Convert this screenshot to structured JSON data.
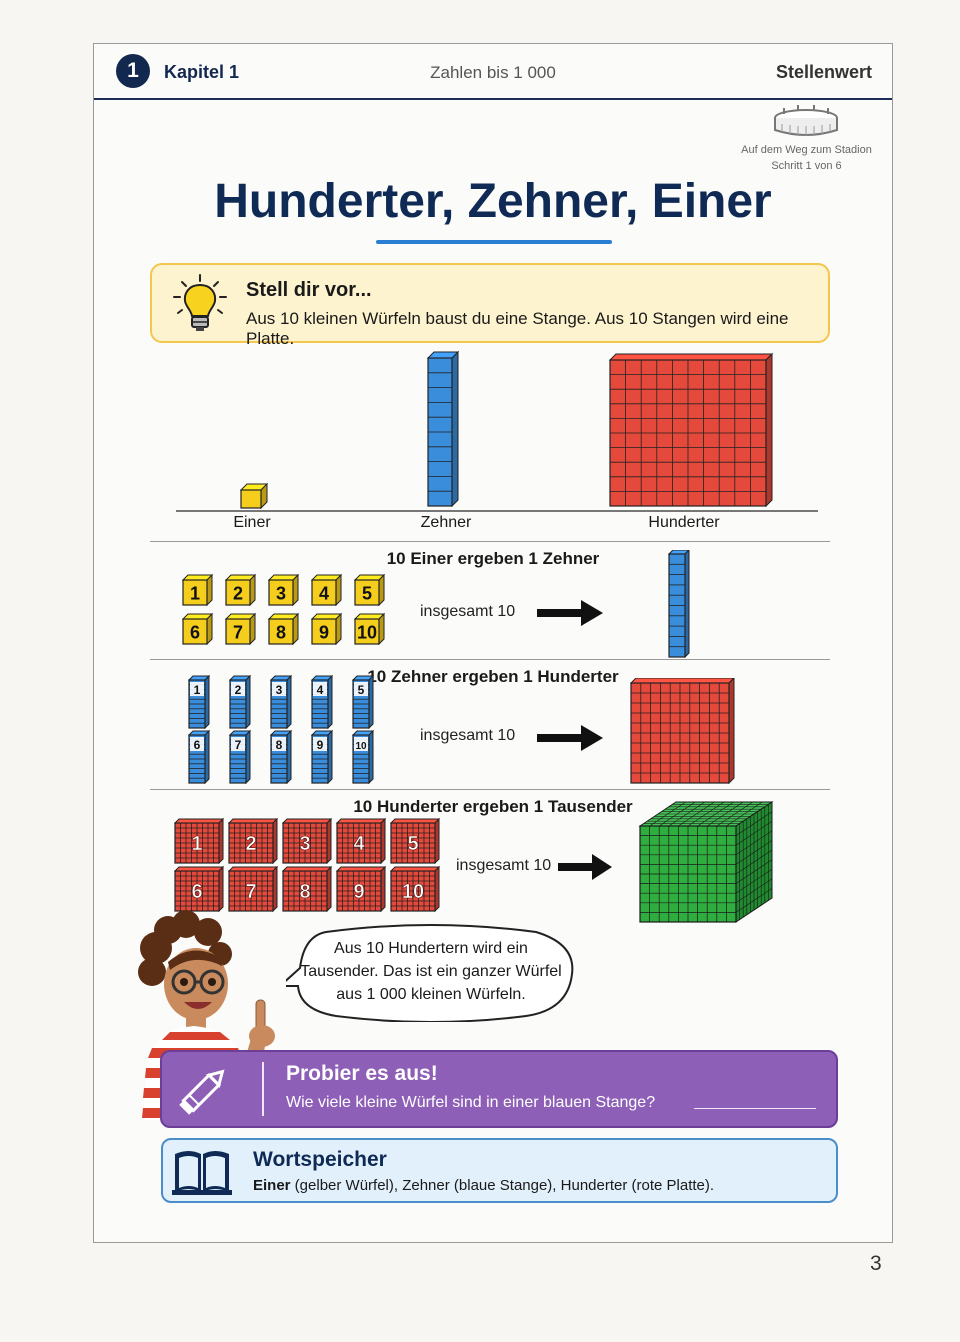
{
  "header": {
    "chapter_number": "1",
    "chapter_label": "Kapitel 1",
    "topic": "Zahlen bis 1 000",
    "section": "Stellenwert"
  },
  "progress": {
    "line1": "Auf dem Weg zum Stadion",
    "line2": "Schritt 1 von 6"
  },
  "title": "Hunderter, Zehner, Einer",
  "imagine": {
    "heading": "Stell dir vor...",
    "text": "Aus 10 kleinen Würfeln baust du eine Stange. Aus 10 Stangen wird eine Platte."
  },
  "overview_labels": {
    "ones": "Einer",
    "tens": "Zehner",
    "hundreds": "Hunderter"
  },
  "row1": {
    "title": "10 Einer ergeben 1 Zehner",
    "total": "insgesamt 10"
  },
  "row2": {
    "title": "10 Zehner ergeben 1 Hunderter",
    "total": "insgesamt 10"
  },
  "row3": {
    "title": "10 Hunderter ergeben 1 Tausender",
    "total": "insgesamt 10"
  },
  "item_numbers": [
    "1",
    "2",
    "3",
    "4",
    "5",
    "6",
    "7",
    "8",
    "9",
    "10"
  ],
  "speech": {
    "text": "Aus 10 Hundertern wird ein Tausender. Das ist ein ganzer Würfel aus 1 000 kleinen Würfeln."
  },
  "try": {
    "heading": "Probier es aus!",
    "text": "Wie viele kleine Würfel sind in einer blauen Stange?"
  },
  "wordbank": {
    "heading": "Wortspeicher",
    "term": "Einer",
    "text": " (gelber Würfel), Zehner (blaue Stange), Hunderter (rote Platte)."
  },
  "page_number": "3",
  "colors": {
    "navy": "#13284f",
    "ones": "#f5cd1c",
    "tens": "#3a8ddb",
    "hundreds": "#e5493b",
    "thousand": "#2fae3f",
    "try": "#8d5fb6",
    "word": "#e2f0fb"
  }
}
